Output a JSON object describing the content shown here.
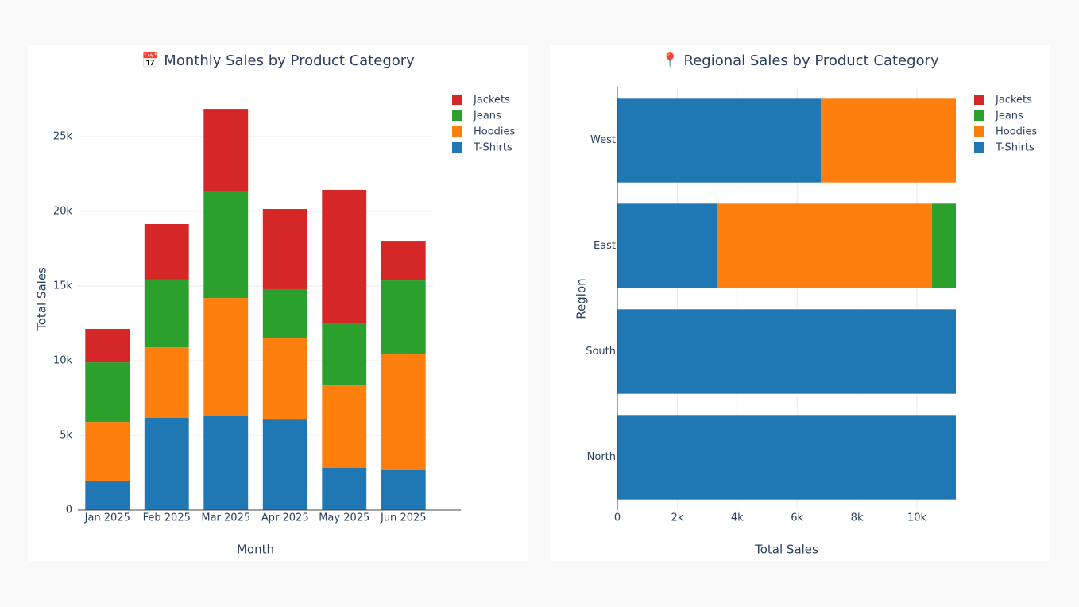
{
  "chart_data": [
    {
      "type": "bar",
      "orientation": "vertical",
      "barmode": "stack",
      "title": "📅 Monthly Sales by Product Category",
      "x_label": "Month",
      "y_label": "Total Sales",
      "categories": [
        "Jan 2025",
        "Feb 2025",
        "Mar 2025",
        "Apr 2025",
        "May 2025",
        "Jun 2025"
      ],
      "series": [
        {
          "name": "T-Shirts",
          "color": "#1f77b4",
          "values": [
            1970,
            6170,
            6330,
            6060,
            2820,
            2710
          ]
        },
        {
          "name": "Hoodies",
          "color": "#ff7f0e",
          "values": [
            3930,
            4730,
            7870,
            5430,
            5530,
            7770
          ]
        },
        {
          "name": "Jeans",
          "color": "#2ca02c",
          "values": [
            3990,
            4530,
            7180,
            3300,
            4150,
            4890
          ]
        },
        {
          "name": "Jackets",
          "color": "#d62728",
          "values": [
            2240,
            3720,
            5480,
            5370,
            8940,
            2660
          ]
        }
      ],
      "ylim": [
        0,
        28300
      ],
      "yticks": [
        0,
        {
          "value": 5000,
          "label": "5k"
        },
        {
          "value": 10000,
          "label": "10k"
        },
        {
          "value": 15000,
          "label": "15k"
        },
        {
          "value": 20000,
          "label": "20k"
        },
        {
          "value": 25000,
          "label": "25k"
        }
      ],
      "grid": true,
      "legend": "right"
    },
    {
      "type": "bar",
      "orientation": "horizontal",
      "barmode": "stack",
      "title": "📍 Regional Sales by Product Category",
      "x_label": "Total Sales",
      "y_label": "Region",
      "categories": [
        "North",
        "South",
        "East",
        "West"
      ],
      "series": [
        {
          "name": "T-Shirts",
          "color": "#1f77b4",
          "values": [
            11300,
            11300,
            3320,
            6790
          ]
        },
        {
          "name": "Hoodies",
          "color": "#ff7f0e",
          "values": [
            null,
            null,
            7180,
            4510
          ]
        },
        {
          "name": "Jeans",
          "color": "#2ca02c",
          "values": [
            null,
            null,
            800,
            null
          ]
        },
        {
          "name": "Jackets",
          "color": "#d62728",
          "values": [
            null,
            null,
            null,
            null
          ]
        }
      ],
      "xlim": [
        0,
        11300
      ],
      "xticks": [
        0,
        {
          "value": 2000,
          "label": "2k"
        },
        {
          "value": 4000,
          "label": "4k"
        },
        {
          "value": 6000,
          "label": "6k"
        },
        {
          "value": 8000,
          "label": "8k"
        },
        {
          "value": 10000,
          "label": "10k"
        }
      ],
      "grid": true,
      "legend": "right"
    }
  ]
}
